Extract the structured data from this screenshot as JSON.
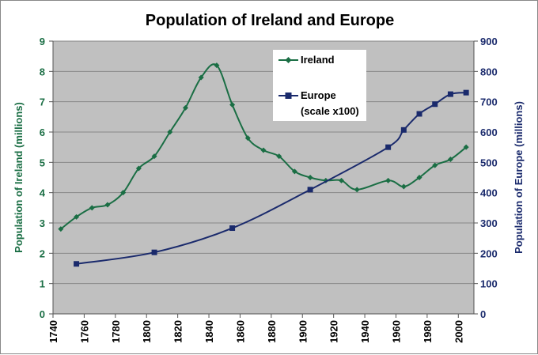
{
  "chart_data": {
    "type": "line",
    "title": "Population of Ireland and Europe",
    "xlabel": "",
    "ylabel_left": "Population of Ireland (millions)",
    "ylabel_right": "Population of Europe (millions)",
    "xlim": [
      1740,
      2010
    ],
    "xticks": [
      1740,
      1760,
      1780,
      1800,
      1820,
      1840,
      1860,
      1880,
      1900,
      1920,
      1940,
      1960,
      1980,
      2000
    ],
    "ylim_left": [
      0,
      9
    ],
    "yticks_left": [
      0,
      1,
      2,
      3,
      4,
      5,
      6,
      7,
      8,
      9
    ],
    "ylim_right": [
      0,
      900
    ],
    "yticks_right": [
      0,
      100,
      200,
      300,
      400,
      500,
      600,
      700,
      800,
      900
    ],
    "grid": "horizontal",
    "plot_background": "#c0c0c0",
    "legend_position": "top-right inside plot",
    "series": [
      {
        "name": "Ireland",
        "axis": "left",
        "color": "#1a6e44",
        "marker": "diamond",
        "x": [
          1745,
          1755,
          1765,
          1775,
          1785,
          1795,
          1805,
          1815,
          1825,
          1835,
          1845,
          1855,
          1865,
          1875,
          1885,
          1895,
          1905,
          1915,
          1925,
          1935,
          1955,
          1965,
          1975,
          1985,
          1995,
          2005
        ],
        "values": [
          2.8,
          3.2,
          3.5,
          3.6,
          4.0,
          4.8,
          5.2,
          6.0,
          6.8,
          7.8,
          8.2,
          6.9,
          5.8,
          5.4,
          5.2,
          4.7,
          4.5,
          4.4,
          4.4,
          4.1,
          4.4,
          4.2,
          4.5,
          4.9,
          5.1,
          5.5
        ]
      },
      {
        "name": "Europe",
        "legend_sub": "(scale x100)",
        "axis": "right",
        "color": "#1a2a6c",
        "marker": "square",
        "x": [
          1755,
          1805,
          1855,
          1905,
          1955,
          1965,
          1975,
          1985,
          1995,
          2005
        ],
        "values": [
          165,
          203,
          283,
          410,
          550,
          607,
          660,
          692,
          725,
          730
        ]
      }
    ]
  }
}
